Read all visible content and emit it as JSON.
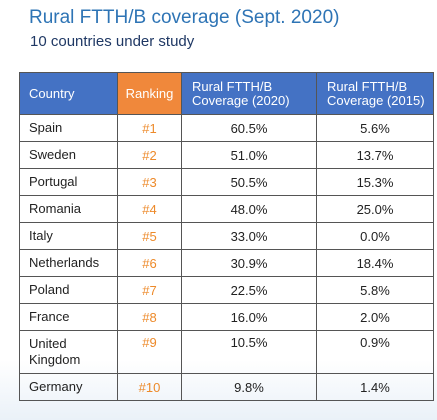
{
  "header": {
    "title": "Rural FTTH/B coverage (Sept. 2020)",
    "subtitle": "10 countries under study"
  },
  "table": {
    "columns": [
      "Country",
      "Ranking",
      "Rural FTTH/B Coverage (2020)",
      "Rural FTTH/B Coverage (2015)"
    ],
    "rows": [
      {
        "country": "Spain",
        "ranking": "#1",
        "cov2020": "60.5%",
        "cov2015": "5.6%"
      },
      {
        "country": "Sweden",
        "ranking": "#2",
        "cov2020": "51.0%",
        "cov2015": "13.7%"
      },
      {
        "country": "Portugal",
        "ranking": "#3",
        "cov2020": "50.5%",
        "cov2015": "15.3%"
      },
      {
        "country": "Romania",
        "ranking": "#4",
        "cov2020": "48.0%",
        "cov2015": "25.0%"
      },
      {
        "country": "Italy",
        "ranking": "#5",
        "cov2020": "33.0%",
        "cov2015": "0.0%"
      },
      {
        "country": "Netherlands",
        "ranking": "#6",
        "cov2020": "30.9%",
        "cov2015": "18.4%"
      },
      {
        "country": "Poland",
        "ranking": "#7",
        "cov2020": "22.5%",
        "cov2015": "5.8%"
      },
      {
        "country": "France",
        "ranking": "#8",
        "cov2020": "16.0%",
        "cov2015": "2.0%"
      },
      {
        "country": "United Kingdom",
        "ranking": "#9",
        "cov2020": "10.5%",
        "cov2015": "0.9%"
      },
      {
        "country": "Germany",
        "ranking": "#10",
        "cov2020": "9.8%",
        "cov2015": "1.4%"
      }
    ]
  },
  "colors": {
    "header_blue": "#4472c4",
    "ranking_orange": "#f0883b",
    "title_blue": "#2e74b5"
  }
}
